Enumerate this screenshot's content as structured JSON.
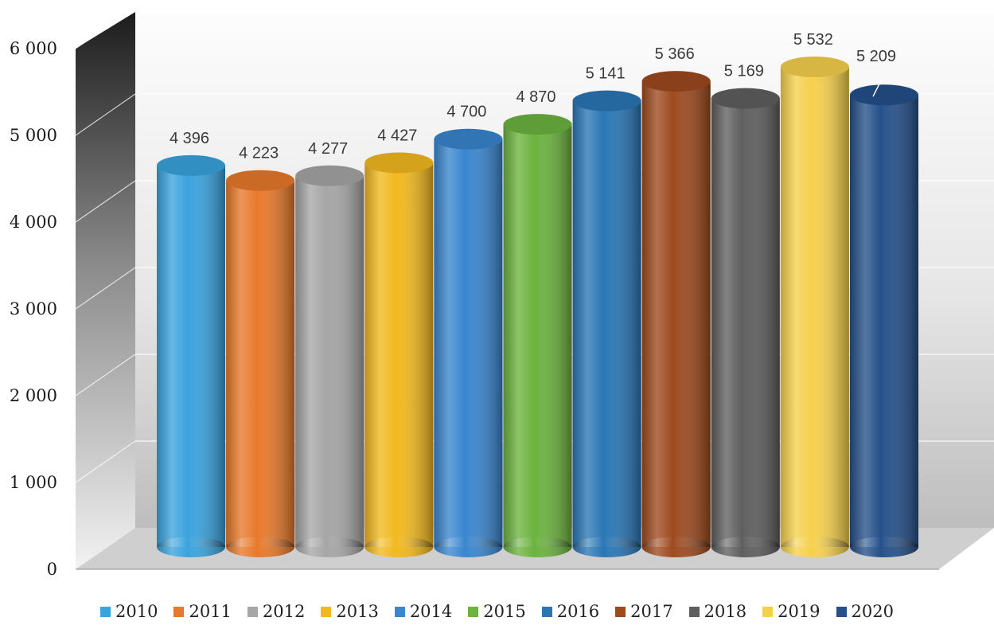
{
  "chart_data": {
    "type": "bar",
    "categories": [
      "2010",
      "2011",
      "2012",
      "2013",
      "2014",
      "2015",
      "2016",
      "2017",
      "2018",
      "2019",
      "2020"
    ],
    "values": [
      4396,
      4223,
      4277,
      4427,
      4700,
      4870,
      5141,
      5366,
      5169,
      5532,
      5209
    ],
    "value_labels": [
      "4 396",
      "4 223",
      "4 277",
      "4 427",
      "4 700",
      "4 870",
      "5 141",
      "5 366",
      "5 169",
      "5 532",
      "5 209"
    ],
    "colors": [
      "#3aa3dd",
      "#e8792b",
      "#a6a6a6",
      "#f2b91f",
      "#3a86cf",
      "#6cb33f",
      "#2a77b6",
      "#9e4a1f",
      "#5f5f5f",
      "#f6d04d",
      "#25508a"
    ],
    "y_ticks": [
      0,
      1000,
      2000,
      3000,
      4000,
      5000,
      6000
    ],
    "y_tick_labels": [
      "0",
      "1 000",
      "2 000",
      "3 000",
      "4 000",
      "5 000",
      "6 000"
    ],
    "ylim": [
      0,
      6000
    ],
    "grid": true,
    "legend_position": "bottom",
    "style": "3d-cylinder"
  }
}
